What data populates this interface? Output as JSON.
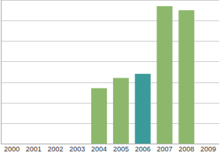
{
  "chart_data": {
    "type": "bar",
    "categories": [
      "2000",
      "2001",
      "2002",
      "2003",
      "2004",
      "2005",
      "2006",
      "2007",
      "2008",
      "2009"
    ],
    "values": [
      null,
      null,
      null,
      null,
      2.7,
      3.2,
      3.4,
      6.7,
      6.5,
      null
    ],
    "colors": [
      "#8db86b",
      "#8db86b",
      "#8db86b",
      "#8db86b",
      "#8db86b",
      "#8db86b",
      "#3a9b9a",
      "#8db86b",
      "#8db86b",
      "#8db86b"
    ],
    "ylim": [
      0,
      7
    ],
    "yticks": [
      0,
      1,
      2,
      3,
      4,
      5,
      6,
      7
    ],
    "grid": true,
    "tick_labels": "x"
  }
}
